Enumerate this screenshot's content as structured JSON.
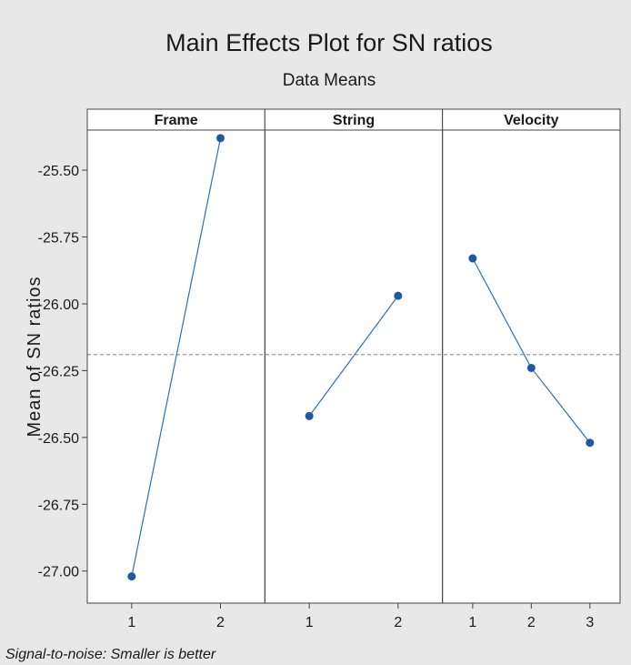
{
  "chart_data": {
    "type": "line",
    "title": "Main Effects Plot for SN ratios",
    "subtitle": "Data Means",
    "ylabel": "Mean of SN ratios",
    "footnote": "Signal-to-noise: Smaller is better",
    "ylim": [
      -27.12,
      -25.35
    ],
    "yticks": [
      "-25.50",
      "-25.75",
      "-26.00",
      "-26.25",
      "-26.50",
      "-26.75",
      "-27.00"
    ],
    "reference_line": -26.19,
    "grid": false,
    "colors": {
      "background": "#e8e8e8",
      "plot_area": "#ffffff",
      "line": "#2f6fb0",
      "marker": "#1f5aa0",
      "reference": "#9a9a9a",
      "axis": "#444444"
    },
    "panels": [
      {
        "name": "Frame",
        "x": [
          "1",
          "2"
        ],
        "values": [
          -27.02,
          -25.38
        ]
      },
      {
        "name": "String",
        "x": [
          "1",
          "2"
        ],
        "values": [
          -26.42,
          -25.97
        ]
      },
      {
        "name": "Velocity",
        "x": [
          "1",
          "2",
          "3"
        ],
        "values": [
          -25.83,
          -26.24,
          -26.52
        ]
      }
    ]
  }
}
